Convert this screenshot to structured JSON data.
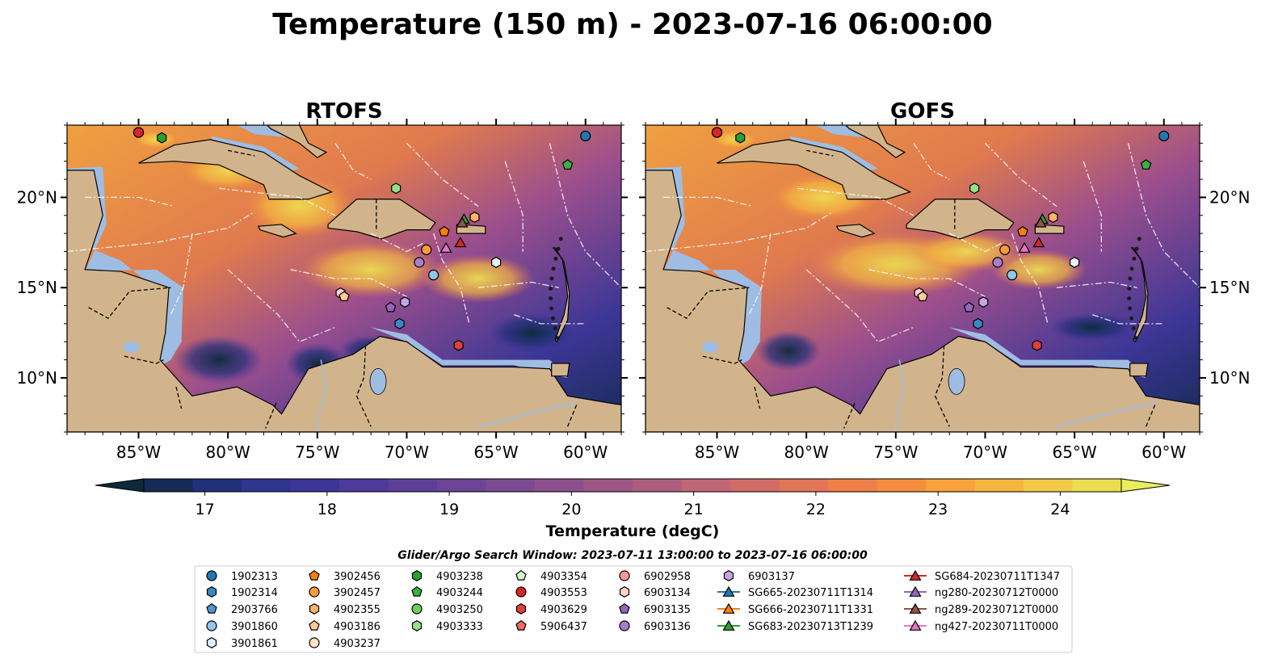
{
  "title": "Temperature (150 m) - 2023-07-16 06:00:00",
  "panels": [
    {
      "title": "RTOFS"
    },
    {
      "title": "GOFS"
    }
  ],
  "lon_ticks": [
    "85°W",
    "80°W",
    "75°W",
    "70°W",
    "65°W",
    "60°W"
  ],
  "lat_ticks": [
    "20°N",
    "15°N",
    "10°N"
  ],
  "colorbar": {
    "label": "Temperature (degC)",
    "ticks": [
      "17",
      "18",
      "19",
      "20",
      "21",
      "22",
      "23",
      "24"
    ],
    "min": 16.5,
    "max": 24.5,
    "colors": [
      "#0b2a3b",
      "#172a55",
      "#21307a",
      "#2e358f",
      "#3b3598",
      "#4d3a9a",
      "#5d3f99",
      "#6d4496",
      "#7c4a92",
      "#8c518c",
      "#9c5785",
      "#ad5e7d",
      "#c06674",
      "#d16d66",
      "#e37558",
      "#f07f48",
      "#f78d3e",
      "#f9a13b",
      "#f6b53f",
      "#f2ca47",
      "#eddd52",
      "#e8ef5a"
    ]
  },
  "legend_title": "Glider/Argo Search Window: 2023-07-11 13:00:00 to 2023-07-16 06:00:00",
  "map_colors": {
    "land": "#d2b48c",
    "shelf": "#9fbde3",
    "ocean_warm": "#f2a23c",
    "ocean_mid": "#c9607a",
    "ocean_cool": "#4c3a96",
    "ocean_cold": "#0b2a3b"
  },
  "legend": [
    {
      "label": "1902313",
      "marker": "circle",
      "color": "#1f77b4"
    },
    {
      "label": "1902314",
      "marker": "hexagon",
      "color": "#3b88c4"
    },
    {
      "label": "2903766",
      "marker": "pentagon",
      "color": "#4f97d0"
    },
    {
      "label": "3901860",
      "marker": "circle",
      "color": "#93c6ea"
    },
    {
      "label": "3901861",
      "marker": "hexagon",
      "color": "#e5f1fb"
    },
    {
      "label": "3902456",
      "marker": "pentagon",
      "color": "#ff7f0e"
    },
    {
      "label": "3902457",
      "marker": "circle",
      "color": "#ff9a3c"
    },
    {
      "label": "4902355",
      "marker": "hexagon",
      "color": "#ffb366"
    },
    {
      "label": "4903186",
      "marker": "pentagon",
      "color": "#ffcc99"
    },
    {
      "label": "4903237",
      "marker": "circle",
      "color": "#ffe4c4"
    },
    {
      "label": "4903238",
      "marker": "hexagon",
      "color": "#2ca02c"
    },
    {
      "label": "4903244",
      "marker": "pentagon",
      "color": "#3cb043"
    },
    {
      "label": "4903250",
      "marker": "circle",
      "color": "#6ccf5a"
    },
    {
      "label": "4903333",
      "marker": "hexagon",
      "color": "#98df8a"
    },
    {
      "label": "4903354",
      "marker": "pentagon",
      "color": "#d4f5c9"
    },
    {
      "label": "4903553",
      "marker": "circle",
      "color": "#d62728"
    },
    {
      "label": "4903629",
      "marker": "hexagon",
      "color": "#e0403a"
    },
    {
      "label": "5906437",
      "marker": "pentagon",
      "color": "#ee6a5e"
    },
    {
      "label": "6902958",
      "marker": "circle",
      "color": "#ff9896"
    },
    {
      "label": "6903134",
      "marker": "hexagon",
      "color": "#ffd1cf"
    },
    {
      "label": "6903135",
      "marker": "pentagon",
      "color": "#9467bd"
    },
    {
      "label": "6903136",
      "marker": "circle",
      "color": "#a57fce"
    },
    {
      "label": "6903137",
      "marker": "hexagon",
      "color": "#c5a6e6"
    },
    {
      "label": "SG665-20230711T1314",
      "marker": "triangle",
      "color": "#1f77b4"
    },
    {
      "label": "SG666-20230711T1331",
      "marker": "triangle",
      "color": "#ff7f0e"
    },
    {
      "label": "SG683-20230713T1239",
      "marker": "triangle",
      "color": "#2ca02c"
    },
    {
      "label": "SG684-20230711T1347",
      "marker": "triangle",
      "color": "#d62728"
    },
    {
      "label": "ng280-20230712T0000",
      "marker": "triangle",
      "color": "#9467bd"
    },
    {
      "label": "ng289-20230712T0000",
      "marker": "triangle",
      "color": "#8c564b"
    },
    {
      "label": "ng427-20230711T0000",
      "marker": "triangle",
      "color": "#e377c2"
    }
  ],
  "observations": [
    {
      "id": "1902313",
      "lon": -60.0,
      "lat": 23.4
    },
    {
      "id": "4903250",
      "lon": -85.0,
      "lat": 23.6
    },
    {
      "id": "4903553",
      "lon": -85.0,
      "lat": 23.6
    },
    {
      "id": "4903238",
      "lon": -83.7,
      "lat": 23.3
    },
    {
      "id": "4903244",
      "lon": -61.0,
      "lat": 21.8
    },
    {
      "id": "4903333",
      "lon": -70.6,
      "lat": 20.5
    },
    {
      "id": "SG683-20230713T1239",
      "lon": -66.8,
      "lat": 18.8
    },
    {
      "id": "ng289-20230712T0000",
      "lon": -66.9,
      "lat": 18.6
    },
    {
      "id": "4902355",
      "lon": -66.2,
      "lat": 18.9
    },
    {
      "id": "3902456",
      "lon": -67.9,
      "lat": 18.1
    },
    {
      "id": "SG684-20230711T1347",
      "lon": -67.0,
      "lat": 17.5
    },
    {
      "id": "ng427-20230711T0000",
      "lon": -67.8,
      "lat": 17.2
    },
    {
      "id": "3902457",
      "lon": -68.9,
      "lat": 17.1
    },
    {
      "id": "6903136",
      "lon": -69.3,
      "lat": 16.4
    },
    {
      "id": "3901861",
      "lon": -65.0,
      "lat": 16.4
    },
    {
      "id": "3901860",
      "lon": -68.5,
      "lat": 15.7
    },
    {
      "id": "6903134",
      "lon": -73.7,
      "lat": 14.7
    },
    {
      "id": "4903186",
      "lon": -73.5,
      "lat": 14.5
    },
    {
      "id": "6903135",
      "lon": -70.9,
      "lat": 13.9
    },
    {
      "id": "6903137",
      "lon": -70.1,
      "lat": 14.2
    },
    {
      "id": "1902314",
      "lon": -70.4,
      "lat": 13.0
    },
    {
      "id": "4903629",
      "lon": -67.1,
      "lat": 11.8
    }
  ]
}
